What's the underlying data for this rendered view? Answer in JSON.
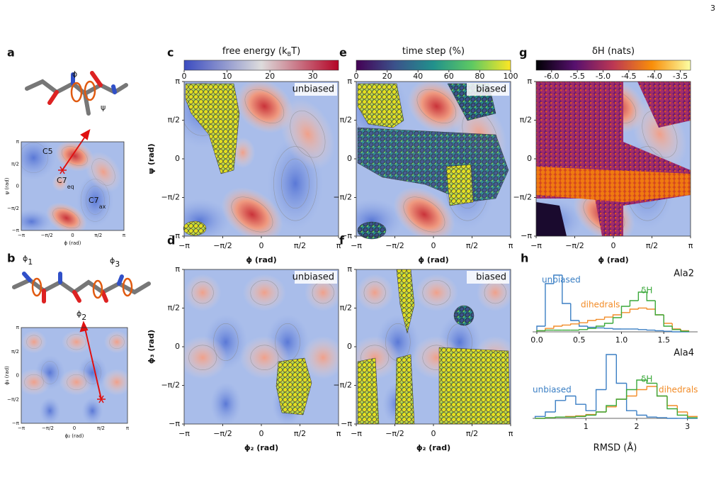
{
  "page_number": "3",
  "angle_ticks": [
    "−π",
    "−π/2",
    "0",
    "π/2",
    "π"
  ],
  "panels": {
    "a": {
      "letter": "a",
      "angle_labels": [
        "ϕ",
        "ψ"
      ],
      "inset_states": [
        {
          "text": "C5"
        },
        {
          "text": "C7",
          "sub": "eq"
        },
        {
          "text": "C7",
          "sub": "ax"
        }
      ],
      "inset_x_label": "ϕ (rad)",
      "inset_y_label": "ψ (rad)"
    },
    "b": {
      "letter": "b",
      "angle_labels": [
        {
          "text": "ϕ",
          "sub": "1"
        },
        {
          "text": "ϕ",
          "sub": "2"
        },
        {
          "text": "ϕ",
          "sub": "3"
        }
      ],
      "inset_x_label": "ϕ₂ (rad)",
      "inset_y_label": "ϕ₃ (rad)"
    },
    "c": {
      "letter": "c",
      "tag": "unbiased",
      "x_label": "ϕ (rad)",
      "y_label": "ψ (rad)"
    },
    "d": {
      "letter": "d",
      "tag": "unbiased",
      "x_label": "ϕ₂ (rad)",
      "y_label": "ϕ₃ (rad)"
    },
    "e": {
      "letter": "e",
      "tag": "biased",
      "x_label": "ϕ (rad)"
    },
    "f": {
      "letter": "f",
      "tag": "biased",
      "x_label": "ϕ₂ (rad)"
    },
    "g": {
      "letter": "g",
      "x_label": "ϕ (rad)"
    },
    "h": {
      "letter": "h"
    }
  },
  "colorbars": [
    {
      "label": [
        "free energy (k",
        "B",
        "T)"
      ],
      "lim": [
        0,
        36
      ],
      "ticks": [
        0,
        10,
        20,
        30
      ],
      "colors": [
        "#3b4cc0",
        "#dddcdc",
        "#b40426"
      ]
    },
    {
      "label": [
        "time step (%)"
      ],
      "lim": [
        0,
        100
      ],
      "ticks": [
        0,
        20,
        40,
        60,
        80,
        100
      ],
      "colors": [
        "#440154",
        "#3b528b",
        "#21918c",
        "#5ec962",
        "#fde725"
      ]
    },
    {
      "label": [
        "δH (nats)"
      ],
      "lim": [
        -6.3,
        -3.3
      ],
      "ticks": [
        {
          "value": -6,
          "label": "-6.0"
        },
        {
          "value": -5.5,
          "label": "-5.5"
        },
        {
          "value": -5,
          "label": "-5.0"
        },
        {
          "value": -4.5,
          "label": "-4.5"
        },
        {
          "value": -4,
          "label": "-4.0"
        },
        {
          "value": -3.5,
          "label": "-3.5"
        }
      ],
      "colors": [
        "#000004",
        "#57106e",
        "#bc3754",
        "#f98e09",
        "#fcffa4"
      ]
    }
  ],
  "chart_data": [
    {
      "type": "histogram",
      "title": "Ala2",
      "bins": [
        0,
        0.1,
        0.2,
        0.3,
        0.4,
        0.5,
        0.6,
        0.7,
        0.8,
        0.9,
        1.0,
        1.1,
        1.2,
        1.3,
        1.4,
        1.5,
        1.6,
        1.7,
        1.8
      ],
      "series": [
        {
          "name": "unbiased",
          "color": "#3b7fc4",
          "values": [
            0.1,
            0.85,
            1.0,
            0.5,
            0.2,
            0.1,
            0.08,
            0.07,
            0.06,
            0.05,
            0.05,
            0.05,
            0.04,
            0.03,
            0.02,
            0.01,
            0,
            0
          ]
        },
        {
          "name": "dihedrals",
          "color": "#f28c28",
          "values": [
            0.02,
            0.06,
            0.1,
            0.12,
            0.14,
            0.16,
            0.2,
            0.22,
            0.26,
            0.3,
            0.34,
            0.4,
            0.42,
            0.4,
            0.3,
            0.15,
            0.05,
            0.02
          ]
        },
        {
          "name": "δH",
          "color": "#3aa83a",
          "values": [
            0.02,
            0.03,
            0.03,
            0.03,
            0.03,
            0.04,
            0.06,
            0.1,
            0.15,
            0.25,
            0.45,
            0.55,
            0.7,
            0.55,
            0.3,
            0.1,
            0.04,
            0.01
          ]
        }
      ],
      "xlim": [
        -0.05,
        1.9
      ],
      "ylim": [
        0,
        1
      ],
      "xticks": [
        {
          "value": 0,
          "label": "0.0"
        },
        0.5,
        {
          "value": 1,
          "label": "1.0"
        },
        1.5
      ]
    },
    {
      "type": "histogram",
      "title": "Ala4",
      "bins": [
        0,
        0.2,
        0.4,
        0.6,
        0.8,
        1.0,
        1.2,
        1.4,
        1.6,
        1.8,
        2.0,
        2.2,
        2.4,
        2.6,
        2.8,
        3.0,
        3.2
      ],
      "series": [
        {
          "name": "unbiased",
          "color": "#3b7fc4",
          "values": [
            0.03,
            0.1,
            0.28,
            0.35,
            0.22,
            0.12,
            0.45,
            1.0,
            0.55,
            0.12,
            0.05,
            0.02,
            0.01,
            0,
            0,
            0
          ]
        },
        {
          "name": "dihedrals",
          "color": "#f28c28",
          "values": [
            0,
            0.01,
            0.02,
            0.03,
            0.04,
            0.06,
            0.1,
            0.18,
            0.3,
            0.35,
            0.45,
            0.5,
            0.35,
            0.2,
            0.1,
            0.03
          ]
        },
        {
          "name": "δH",
          "color": "#3aa83a",
          "values": [
            0,
            0.01,
            0.02,
            0.02,
            0.03,
            0.05,
            0.1,
            0.2,
            0.3,
            0.45,
            0.6,
            0.55,
            0.35,
            0.15,
            0.05,
            0.01
          ]
        }
      ],
      "xlim": [
        -0.05,
        3.2
      ],
      "ylim": [
        0,
        1
      ],
      "xticks": [
        1,
        2,
        3
      ],
      "x_label": "RMSD (Å)"
    }
  ]
}
